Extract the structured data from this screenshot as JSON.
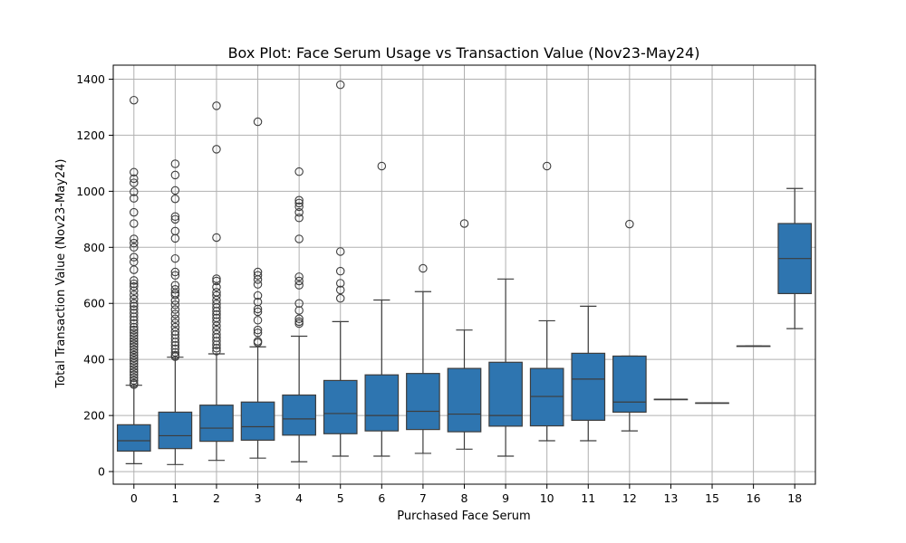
{
  "chart_data": {
    "type": "box",
    "title": "Box Plot: Face Serum Usage vs Transaction Value (Nov23-May24)",
    "xlabel": "Purchased Face Serum",
    "ylabel": "Total Transaction Value (Nov23-May24)",
    "ylim": [
      -45,
      1450
    ],
    "yticks": [
      0,
      200,
      400,
      600,
      800,
      1000,
      1200,
      1400
    ],
    "grid": true,
    "box_color": "#2e75b0",
    "categories": [
      "0",
      "1",
      "2",
      "3",
      "4",
      "5",
      "6",
      "7",
      "8",
      "9",
      "10",
      "11",
      "12",
      "13",
      "15",
      "16",
      "18"
    ],
    "boxes": [
      {
        "min": 28,
        "q1": 73,
        "median": 110,
        "q3": 167,
        "max": 308,
        "outliers": [
          1325,
          1068,
          1045,
          1030,
          998,
          975,
          925,
          885,
          830,
          815,
          800,
          765,
          748,
          720,
          682,
          670,
          660,
          645,
          630,
          615,
          600,
          590,
          578,
          565,
          552,
          540,
          528,
          515,
          505,
          495,
          485,
          475,
          465,
          455,
          445,
          435,
          425,
          415,
          405,
          395,
          385,
          375,
          365,
          355,
          345,
          335,
          325,
          315,
          310
        ]
      },
      {
        "min": 25,
        "q1": 82,
        "median": 128,
        "q3": 212,
        "max": 408,
        "outliers": [
          1098,
          1058,
          1003,
          973,
          910,
          900,
          858,
          832,
          760,
          712,
          700,
          665,
          650,
          637,
          630,
          610,
          595,
          578,
          562,
          545,
          530,
          515,
          500,
          488,
          475,
          462,
          450,
          438,
          425,
          415,
          410
        ]
      },
      {
        "min": 40,
        "q1": 108,
        "median": 155,
        "q3": 237,
        "max": 420,
        "outliers": [
          1305,
          1150,
          835,
          688,
          680,
          658,
          640,
          628,
          612,
          598,
          585,
          572,
          560,
          548,
          535,
          520,
          505,
          490,
          478,
          465,
          452,
          440,
          430
        ]
      },
      {
        "min": 48,
        "q1": 112,
        "median": 160,
        "q3": 248,
        "max": 445,
        "outliers": [
          1248,
          712,
          700,
          685,
          668,
          628,
          605,
          580,
          570,
          540,
          505,
          495,
          465,
          460
        ]
      },
      {
        "min": 35,
        "q1": 130,
        "median": 188,
        "q3": 273,
        "max": 483,
        "outliers": [
          1070,
          968,
          958,
          945,
          925,
          905,
          830,
          695,
          680,
          665,
          600,
          575,
          545,
          535,
          528
        ]
      },
      {
        "min": 55,
        "q1": 135,
        "median": 207,
        "q3": 325,
        "max": 535,
        "outliers": [
          1380,
          785,
          715,
          672,
          648,
          618
        ]
      },
      {
        "min": 55,
        "q1": 145,
        "median": 200,
        "q3": 345,
        "max": 612,
        "outliers": [
          1090
        ]
      },
      {
        "min": 65,
        "q1": 150,
        "median": 215,
        "q3": 350,
        "max": 642,
        "outliers": [
          725
        ]
      },
      {
        "min": 80,
        "q1": 142,
        "median": 205,
        "q3": 368,
        "max": 505,
        "outliers": [
          885
        ]
      },
      {
        "min": 55,
        "q1": 162,
        "median": 200,
        "q3": 390,
        "max": 687,
        "outliers": []
      },
      {
        "min": 110,
        "q1": 163,
        "median": 268,
        "q3": 368,
        "max": 538,
        "outliers": [
          1090
        ]
      },
      {
        "min": 110,
        "q1": 183,
        "median": 330,
        "q3": 422,
        "max": 590,
        "outliers": []
      },
      {
        "min": 145,
        "q1": 212,
        "median": 248,
        "q3": 412,
        "max": 412,
        "outliers": [
          883
        ]
      },
      {
        "min": 258,
        "q1": 258,
        "median": 258,
        "q3": 258,
        "max": 258,
        "outliers": []
      },
      {
        "min": 245,
        "q1": 245,
        "median": 245,
        "q3": 245,
        "max": 245,
        "outliers": []
      },
      {
        "min": 448,
        "q1": 448,
        "median": 448,
        "q3": 448,
        "max": 448,
        "outliers": []
      },
      {
        "min": 510,
        "q1": 635,
        "median": 760,
        "q3": 885,
        "max": 1010,
        "outliers": []
      }
    ]
  }
}
